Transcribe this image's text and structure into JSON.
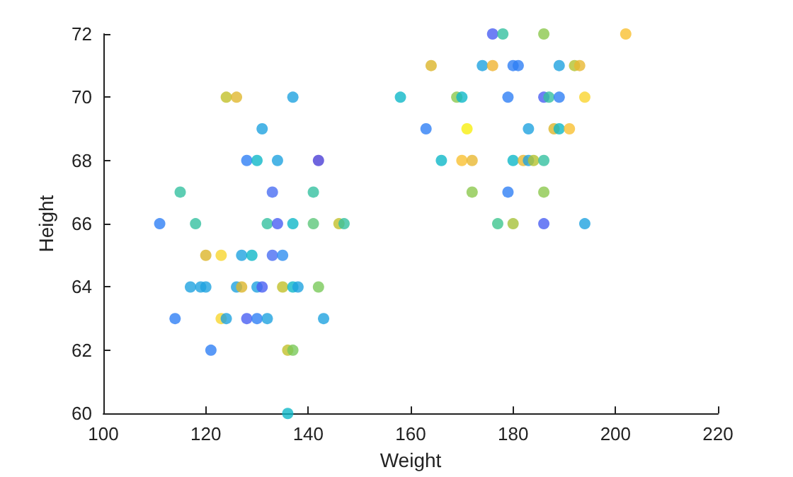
{
  "chart_data": {
    "type": "scatter",
    "xlabel": "Weight",
    "ylabel": "Height",
    "xlim": [
      100,
      220
    ],
    "xticks": [
      100,
      120,
      140,
      160,
      180,
      200,
      220
    ],
    "ylim": [
      60,
      72
    ],
    "yticks": [
      60,
      62,
      64,
      66,
      68,
      70,
      72
    ],
    "grid": false,
    "marker": "circle",
    "x": [
      124,
      126,
      137,
      131,
      128,
      130,
      134,
      142,
      115,
      133,
      141,
      111,
      118,
      132,
      134,
      137,
      141,
      146,
      147,
      120,
      123,
      127,
      129,
      133,
      135,
      117,
      119,
      120,
      126,
      127,
      130,
      131,
      135,
      137,
      138,
      142,
      114,
      123,
      124,
      128,
      130,
      132,
      143,
      121,
      136,
      137,
      136,
      176,
      178,
      186,
      202,
      164,
      174,
      176,
      180,
      181,
      189,
      192,
      193,
      158,
      169,
      170,
      179,
      186,
      187,
      189,
      194,
      163,
      171,
      183,
      188,
      189,
      191,
      166,
      170,
      172,
      180,
      182,
      183,
      184,
      186,
      172,
      179,
      186,
      177,
      180,
      186,
      194
    ],
    "values": [
      70,
      70,
      70,
      69,
      68,
      68,
      68,
      68,
      67,
      67,
      67,
      66,
      66,
      66,
      66,
      66,
      66,
      66,
      66,
      65,
      65,
      65,
      65,
      65,
      65,
      64,
      64,
      64,
      64,
      64,
      64,
      64,
      64,
      64,
      64,
      64,
      63,
      63,
      63,
      63,
      63,
      63,
      63,
      62,
      62,
      62,
      60,
      72,
      72,
      72,
      72,
      71,
      71,
      71,
      71,
      71,
      71,
      71,
      71,
      70,
      70,
      70,
      70,
      70,
      70,
      70,
      70,
      69,
      69,
      69,
      69,
      69,
      69,
      68,
      68,
      68,
      68,
      68,
      68,
      68,
      68,
      67,
      67,
      67,
      66,
      66,
      66,
      66
    ],
    "colors": [
      "#c2c02a",
      "#e0b830",
      "#1fa2e0",
      "#1fa2e0",
      "#2f7ff5",
      "#0fb8c8",
      "#1fa2e0",
      "#4b3fd6",
      "#35c1a0",
      "#4a6ef2",
      "#35c1a0",
      "#2f7ff5",
      "#35c1a0",
      "#35c1a0",
      "#4a5ff2",
      "#0fb8c8",
      "#5ec77a",
      "#c2c02a",
      "#35c1a0",
      "#dcb52a",
      "#f8d630",
      "#1fa2e0",
      "#0fb8c8",
      "#4a6ef2",
      "#2f8ff0",
      "#1fa2e0",
      "#1fa2e0",
      "#1fa2e0",
      "#1fa2e0",
      "#dcb52a",
      "#1fa2e0",
      "#4a5ff2",
      "#c2c02a",
      "#0fb8c8",
      "#1fa2e0",
      "#79c95a",
      "#2f7ff5",
      "#f8d630",
      "#1fa2e0",
      "#4a5ff2",
      "#2f7ff5",
      "#1fa2e0",
      "#1fa2e0",
      "#2f7ff5",
      "#c2c02a",
      "#79c95a",
      "#0fb8c8",
      "#4a5ff2",
      "#35c1a0",
      "#8cc84e",
      "#f9c032",
      "#dcb52a",
      "#1fa2e0",
      "#f0b432",
      "#2f7ff5",
      "#2f7ff5",
      "#1fa2e0",
      "#b4c22e",
      "#e8b832",
      "#0fb8c8",
      "#8cc84e",
      "#0fb8c8",
      "#2f7ff5",
      "#4a5ff2",
      "#35c1a0",
      "#2f7ff5",
      "#fad530",
      "#2f7ff5",
      "#f8ef10",
      "#1fa2e0",
      "#dcb52a",
      "#0fb8c8",
      "#f9c032",
      "#0fb8c8",
      "#f9c032",
      "#e8b832",
      "#0fb8c8",
      "#e8b832",
      "#1fa2e0",
      "#b4c22e",
      "#35c1a0",
      "#8cc84e",
      "#2f7ff5",
      "#8cc84e",
      "#3ec68f",
      "#a6c23a",
      "#4a5ff2",
      "#1fa2e0"
    ]
  }
}
